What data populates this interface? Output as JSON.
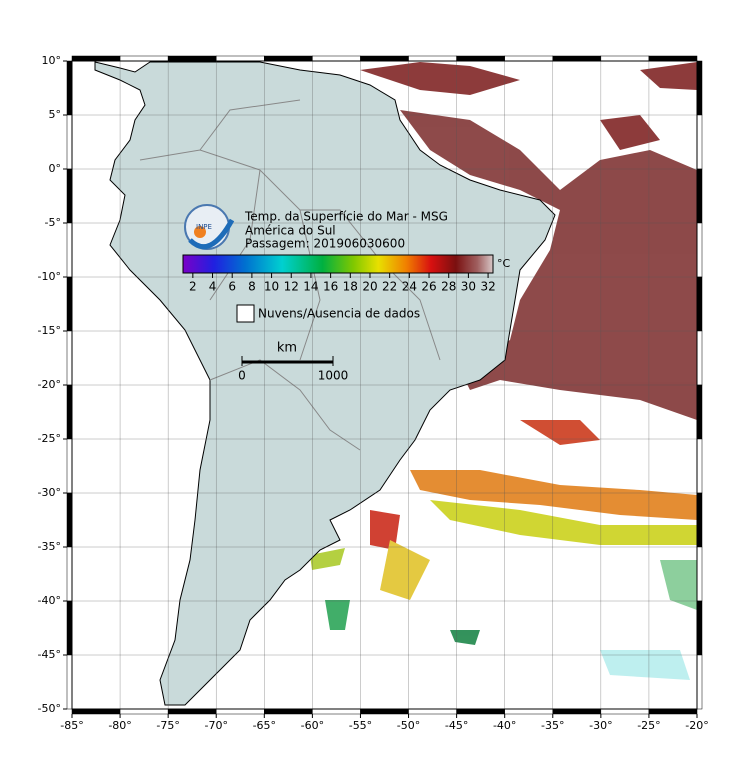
{
  "map": {
    "title": [
      "Temp. da Superfície do Mar - MSG",
      "América do Sul",
      "Passagem: 201906030600"
    ],
    "logo": "INPE",
    "colorbar": {
      "lim": [
        1,
        32.5
      ],
      "ticks": [
        2,
        4,
        6,
        8,
        10,
        12,
        14,
        16,
        18,
        20,
        22,
        24,
        26,
        28,
        30,
        32
      ],
      "unit": "°C"
    },
    "legend": "Nuvens/Ausencia de dados",
    "scale_bar": {
      "unit": "km",
      "start": 0,
      "end": 1000
    },
    "lon_lim": [
      -85,
      -20
    ],
    "lat_lim": [
      -50,
      10
    ],
    "lon_ticks": [
      {
        "value": -85,
        "label": "-85°"
      },
      {
        "value": -80,
        "label": "-80°"
      },
      {
        "value": -75,
        "label": "-75°"
      },
      {
        "value": -70,
        "label": "-70°"
      },
      {
        "value": -65,
        "label": "-65°"
      },
      {
        "value": -60,
        "label": "-60°"
      },
      {
        "value": -55,
        "label": "-55°"
      },
      {
        "value": -50,
        "label": "-50°"
      },
      {
        "value": -45,
        "label": "-45°"
      },
      {
        "value": -40,
        "label": "-40°"
      },
      {
        "value": -35,
        "label": "-35°"
      },
      {
        "value": -30,
        "label": "-30°"
      },
      {
        "value": -25,
        "label": "-25°"
      },
      {
        "value": -20,
        "label": "-20°"
      }
    ],
    "lat_ticks": [
      {
        "value": 10,
        "label": "10°"
      },
      {
        "value": 5,
        "label": "5°"
      },
      {
        "value": 0,
        "label": "0°"
      },
      {
        "value": -5,
        "label": "-5°"
      },
      {
        "value": -10,
        "label": "-10°"
      },
      {
        "value": -15,
        "label": "-15°"
      },
      {
        "value": -20,
        "label": "-20°"
      },
      {
        "value": -25,
        "label": "-25°"
      },
      {
        "value": -30,
        "label": "-30°"
      },
      {
        "value": -35,
        "label": "-35°"
      },
      {
        "value": -40,
        "label": "-40°"
      },
      {
        "value": -45,
        "label": "-45°"
      },
      {
        "value": -50,
        "label": "-50°"
      }
    ]
  }
}
